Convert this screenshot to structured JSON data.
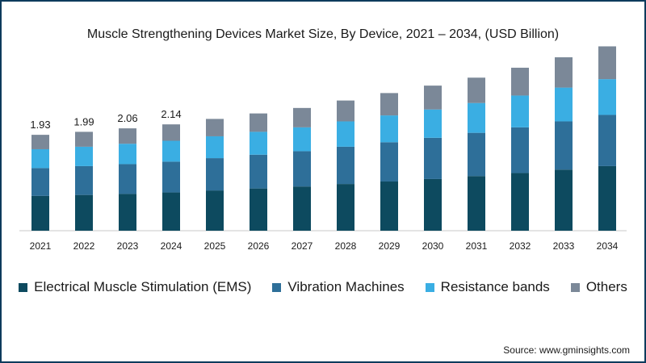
{
  "chart_data": {
    "type": "bar",
    "stacked": true,
    "title": "Muscle Strengthening Devices Market Size, By Device, 2021 – 2034, (USD Billion)",
    "categories": [
      "2021",
      "2022",
      "2023",
      "2024",
      "2025",
      "2026",
      "2027",
      "2028",
      "2029",
      "2030",
      "2031",
      "2032",
      "2033",
      "2034"
    ],
    "series": [
      {
        "name": "Electrical Muscle Stimulation (EMS)",
        "color": "#0d4a5f",
        "values": [
          0.7,
          0.72,
          0.74,
          0.77,
          0.81,
          0.85,
          0.89,
          0.94,
          0.99,
          1.04,
          1.1,
          1.16,
          1.23,
          1.3
        ]
      },
      {
        "name": "Vibration Machines",
        "color": "#2e6f99",
        "values": [
          0.56,
          0.58,
          0.6,
          0.62,
          0.65,
          0.68,
          0.71,
          0.75,
          0.79,
          0.83,
          0.87,
          0.92,
          0.97,
          1.03
        ]
      },
      {
        "name": "Resistance bands",
        "color": "#3aaee3",
        "values": [
          0.38,
          0.39,
          0.41,
          0.42,
          0.44,
          0.46,
          0.48,
          0.51,
          0.54,
          0.57,
          0.6,
          0.64,
          0.68,
          0.72
        ]
      },
      {
        "name": "Others",
        "color": "#7b8898",
        "values": [
          0.29,
          0.3,
          0.31,
          0.33,
          0.35,
          0.37,
          0.39,
          0.42,
          0.45,
          0.48,
          0.51,
          0.56,
          0.61,
          0.66
        ]
      }
    ],
    "data_labels": [
      "1.93",
      "1.99",
      "2.06",
      "2.14"
    ],
    "ylim": [
      0,
      3.75
    ],
    "grid": false,
    "legend_position": "bottom"
  },
  "source_text": "Source: www.gminsights.com"
}
